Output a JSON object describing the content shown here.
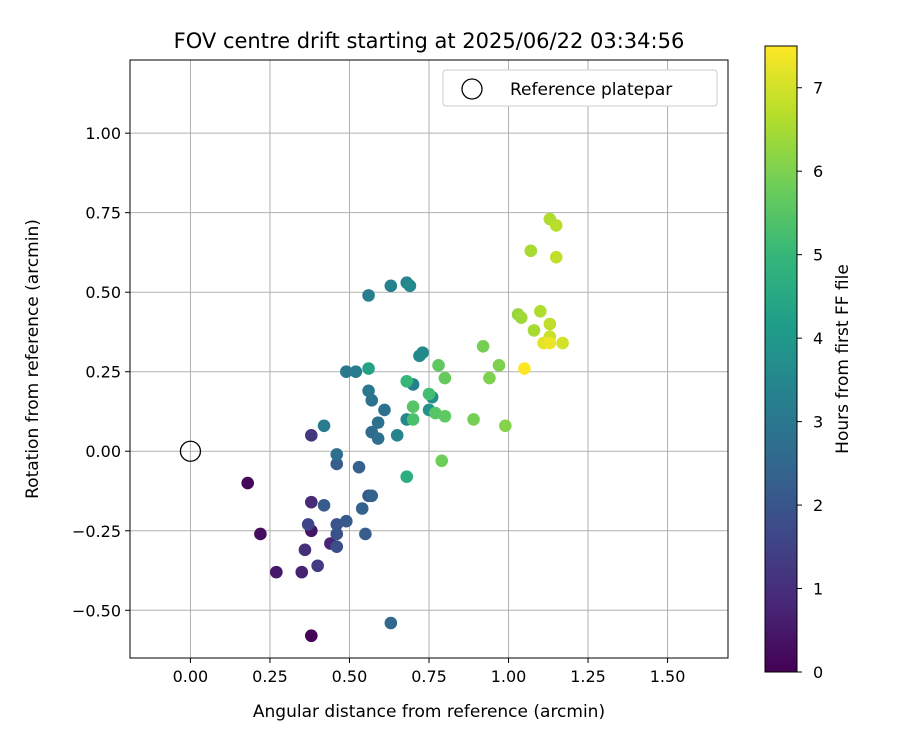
{
  "chart_data": {
    "type": "scatter",
    "title": "FOV centre drift starting at 2025/06/22 03:34:56",
    "xlabel": "Angular distance from reference (arcmin)",
    "ylabel": "Rotation from reference (arcmin)",
    "xlim": [
      -0.19,
      1.69
    ],
    "ylim": [
      -0.65,
      1.23
    ],
    "xticks": [
      0.0,
      0.25,
      0.5,
      0.75,
      1.0,
      1.25,
      1.5
    ],
    "xtick_labels": [
      "0.00",
      "0.25",
      "0.50",
      "0.75",
      "1.00",
      "1.25",
      "1.50"
    ],
    "yticks": [
      -0.5,
      -0.25,
      0.0,
      0.25,
      0.5,
      0.75,
      1.0
    ],
    "ytick_labels": [
      "−0.50",
      "−0.25",
      "0.00",
      "0.25",
      "0.50",
      "0.75",
      "1.00"
    ],
    "grid": true,
    "legend": {
      "position": "top-right",
      "entries": [
        "Reference platepar"
      ]
    },
    "reference_point": {
      "x": 0.0,
      "y": 0.0,
      "marker": "open-circle"
    },
    "colorbar": {
      "label": "Hours from first FF file",
      "colormap": "viridis",
      "range": [
        0,
        7.5
      ],
      "ticks": [
        0,
        1,
        2,
        3,
        4,
        5,
        6,
        7
      ],
      "tick_labels": [
        "0",
        "1",
        "2",
        "3",
        "4",
        "5",
        "6",
        "7"
      ],
      "colors": [
        "#440154",
        "#482878",
        "#3e4989",
        "#31688e",
        "#26828e",
        "#1f9e89",
        "#35b779",
        "#6ece58",
        "#b5de2b",
        "#fde725"
      ]
    },
    "points": [
      {
        "x": 0.38,
        "y": -0.58,
        "h": 0.05
      },
      {
        "x": 0.18,
        "y": -0.1,
        "h": 0.15
      },
      {
        "x": 0.22,
        "y": -0.26,
        "h": 0.25
      },
      {
        "x": 0.27,
        "y": -0.38,
        "h": 0.5
      },
      {
        "x": 0.38,
        "y": -0.25,
        "h": 0.4
      },
      {
        "x": 0.35,
        "y": -0.38,
        "h": 0.7
      },
      {
        "x": 0.38,
        "y": -0.16,
        "h": 0.9
      },
      {
        "x": 0.36,
        "y": -0.31,
        "h": 1.0
      },
      {
        "x": 0.44,
        "y": -0.29,
        "h": 0.8
      },
      {
        "x": 0.38,
        "y": 0.05,
        "h": 1.2
      },
      {
        "x": 0.4,
        "y": -0.36,
        "h": 1.3
      },
      {
        "x": 0.37,
        "y": -0.23,
        "h": 1.6
      },
      {
        "x": 0.46,
        "y": -0.3,
        "h": 1.8
      },
      {
        "x": 0.46,
        "y": -0.26,
        "h": 1.9
      },
      {
        "x": 0.46,
        "y": -0.23,
        "h": 2.0
      },
      {
        "x": 0.49,
        "y": -0.22,
        "h": 2.1
      },
      {
        "x": 0.42,
        "y": -0.17,
        "h": 2.2
      },
      {
        "x": 0.46,
        "y": -0.04,
        "h": 2.2
      },
      {
        "x": 0.53,
        "y": -0.05,
        "h": 2.3
      },
      {
        "x": 0.56,
        "y": -0.14,
        "h": 2.0
      },
      {
        "x": 0.55,
        "y": -0.26,
        "h": 2.2
      },
      {
        "x": 0.54,
        "y": -0.18,
        "h": 2.3
      },
      {
        "x": 0.57,
        "y": -0.14,
        "h": 2.4
      },
      {
        "x": 0.63,
        "y": -0.54,
        "h": 2.5
      },
      {
        "x": 0.46,
        "y": -0.01,
        "h": 2.7
      },
      {
        "x": 0.57,
        "y": 0.06,
        "h": 2.6
      },
      {
        "x": 0.59,
        "y": 0.04,
        "h": 2.7
      },
      {
        "x": 0.59,
        "y": 0.09,
        "h": 2.8
      },
      {
        "x": 0.61,
        "y": 0.13,
        "h": 2.8
      },
      {
        "x": 0.57,
        "y": 0.16,
        "h": 2.9
      },
      {
        "x": 0.56,
        "y": 0.19,
        "h": 3.0
      },
      {
        "x": 0.49,
        "y": 0.25,
        "h": 3.0
      },
      {
        "x": 0.52,
        "y": 0.25,
        "h": 3.1
      },
      {
        "x": 0.42,
        "y": 0.08,
        "h": 3.1
      },
      {
        "x": 0.65,
        "y": 0.05,
        "h": 3.4
      },
      {
        "x": 0.68,
        "y": 0.1,
        "h": 3.5
      },
      {
        "x": 0.7,
        "y": 0.21,
        "h": 3.3
      },
      {
        "x": 0.56,
        "y": 0.49,
        "h": 3.2
      },
      {
        "x": 0.63,
        "y": 0.52,
        "h": 3.3
      },
      {
        "x": 0.68,
        "y": 0.53,
        "h": 3.4
      },
      {
        "x": 0.69,
        "y": 0.52,
        "h": 3.5
      },
      {
        "x": 0.72,
        "y": 0.3,
        "h": 3.5
      },
      {
        "x": 0.73,
        "y": 0.31,
        "h": 3.6
      },
      {
        "x": 0.76,
        "y": 0.17,
        "h": 3.7
      },
      {
        "x": 0.75,
        "y": 0.13,
        "h": 3.8
      },
      {
        "x": 0.56,
        "y": 0.26,
        "h": 4.3
      },
      {
        "x": 0.68,
        "y": -0.08,
        "h": 4.7
      },
      {
        "x": 0.68,
        "y": 0.22,
        "h": 5.0
      },
      {
        "x": 0.75,
        "y": 0.18,
        "h": 5.2
      },
      {
        "x": 0.7,
        "y": 0.1,
        "h": 5.3
      },
      {
        "x": 0.7,
        "y": 0.14,
        "h": 5.5
      },
      {
        "x": 0.77,
        "y": 0.12,
        "h": 5.5
      },
      {
        "x": 0.78,
        "y": 0.27,
        "h": 5.6
      },
      {
        "x": 0.8,
        "y": 0.11,
        "h": 5.6
      },
      {
        "x": 0.8,
        "y": 0.23,
        "h": 5.7
      },
      {
        "x": 0.79,
        "y": -0.03,
        "h": 5.8
      },
      {
        "x": 0.89,
        "y": 0.1,
        "h": 5.9
      },
      {
        "x": 0.92,
        "y": 0.33,
        "h": 5.9
      },
      {
        "x": 0.94,
        "y": 0.23,
        "h": 6.0
      },
      {
        "x": 0.97,
        "y": 0.27,
        "h": 6.0
      },
      {
        "x": 0.99,
        "y": 0.08,
        "h": 6.1
      },
      {
        "x": 1.03,
        "y": 0.43,
        "h": 6.3
      },
      {
        "x": 1.04,
        "y": 0.42,
        "h": 6.4
      },
      {
        "x": 1.07,
        "y": 0.63,
        "h": 6.5
      },
      {
        "x": 1.08,
        "y": 0.38,
        "h": 6.5
      },
      {
        "x": 1.1,
        "y": 0.44,
        "h": 6.6
      },
      {
        "x": 1.13,
        "y": 0.73,
        "h": 6.6
      },
      {
        "x": 1.15,
        "y": 0.71,
        "h": 6.7
      },
      {
        "x": 1.15,
        "y": 0.61,
        "h": 6.8
      },
      {
        "x": 1.13,
        "y": 0.4,
        "h": 6.8
      },
      {
        "x": 1.13,
        "y": 0.36,
        "h": 6.9
      },
      {
        "x": 1.17,
        "y": 0.34,
        "h": 7.0
      },
      {
        "x": 1.11,
        "y": 0.34,
        "h": 7.2
      },
      {
        "x": 1.13,
        "y": 0.34,
        "h": 7.3
      },
      {
        "x": 1.05,
        "y": 0.26,
        "h": 7.5
      }
    ]
  }
}
